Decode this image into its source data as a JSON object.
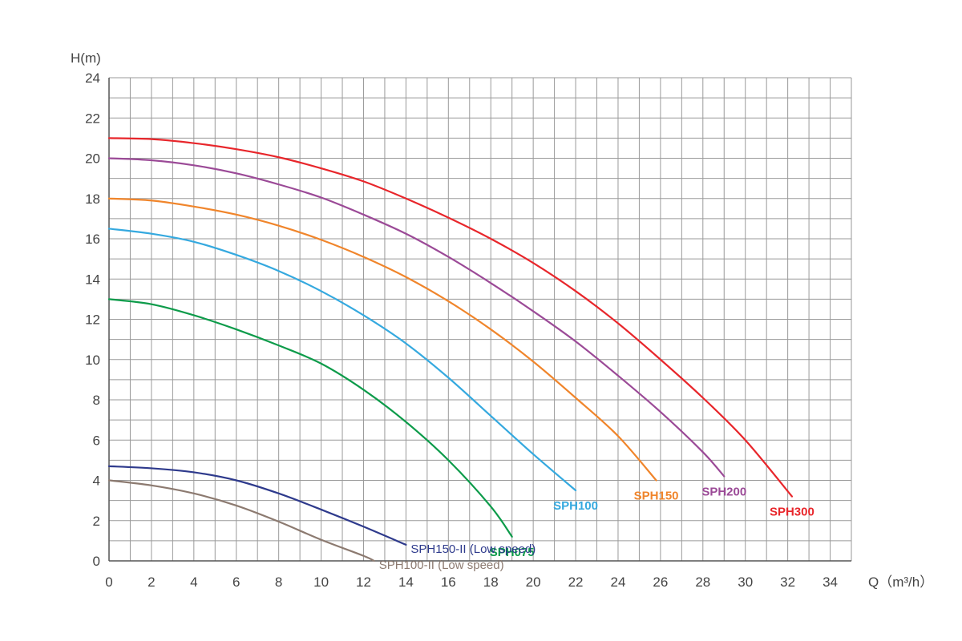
{
  "chart_data": {
    "type": "line",
    "title": "",
    "xlabel": "Q（m³/h）",
    "ylabel": "H(m)",
    "xlim": [
      0,
      35
    ],
    "ylim": [
      0,
      24
    ],
    "x_ticks": [
      0,
      2,
      4,
      6,
      8,
      10,
      12,
      14,
      16,
      18,
      20,
      22,
      24,
      26,
      28,
      30,
      32,
      34
    ],
    "y_ticks": [
      0,
      2,
      4,
      6,
      8,
      10,
      12,
      14,
      16,
      18,
      20,
      22,
      24
    ],
    "grid": true,
    "legend": "inline labels at curve ends",
    "series": [
      {
        "name": "SPH300",
        "color": "#e8262b",
        "bold": true,
        "x": [
          0,
          2,
          4,
          6,
          8,
          10,
          12,
          14,
          16,
          18,
          20,
          22,
          24,
          26,
          28,
          30,
          32.2
        ],
        "y": [
          21.0,
          20.95,
          20.75,
          20.45,
          20.05,
          19.5,
          18.85,
          18.0,
          17.05,
          16.0,
          14.8,
          13.4,
          11.8,
          10.0,
          8.1,
          6.0,
          3.2
        ]
      },
      {
        "name": "SPH200",
        "color": "#9b4a97",
        "bold": true,
        "x": [
          0,
          2,
          4,
          6,
          8,
          10,
          12,
          14,
          16,
          18,
          20,
          22,
          24,
          26,
          28,
          29
        ],
        "y": [
          20.0,
          19.9,
          19.65,
          19.25,
          18.7,
          18.05,
          17.2,
          16.25,
          15.1,
          13.8,
          12.4,
          10.9,
          9.2,
          7.4,
          5.4,
          4.2
        ]
      },
      {
        "name": "SPH150",
        "color": "#f0852b",
        "bold": true,
        "x": [
          0,
          2,
          4,
          6,
          8,
          10,
          12,
          14,
          16,
          18,
          20,
          22,
          24,
          25.8
        ],
        "y": [
          18.0,
          17.9,
          17.6,
          17.2,
          16.65,
          15.95,
          15.1,
          14.1,
          12.9,
          11.5,
          9.9,
          8.1,
          6.2,
          4.0
        ]
      },
      {
        "name": "SPH100",
        "color": "#35a9df",
        "bold": true,
        "x": [
          0,
          2,
          4,
          6,
          8,
          10,
          12,
          14,
          16,
          18,
          20,
          22
        ],
        "y": [
          16.5,
          16.25,
          15.85,
          15.2,
          14.4,
          13.4,
          12.2,
          10.8,
          9.1,
          7.2,
          5.3,
          3.5
        ]
      },
      {
        "name": "SPH075",
        "color": "#0d9b4a",
        "bold": true,
        "x": [
          0,
          2,
          4,
          6,
          8,
          10,
          12,
          14,
          16,
          18,
          19
        ],
        "y": [
          13.0,
          12.75,
          12.2,
          11.5,
          10.7,
          9.8,
          8.5,
          6.9,
          5.0,
          2.7,
          1.2
        ]
      },
      {
        "name": "SPH150-II (Low speed)",
        "color": "#2e3a8c",
        "bold": false,
        "x": [
          0,
          2,
          4,
          6,
          8,
          10,
          12,
          14
        ],
        "y": [
          4.7,
          4.6,
          4.4,
          4.0,
          3.35,
          2.55,
          1.7,
          0.8
        ]
      },
      {
        "name": "SPH100-II (Low speed)",
        "color": "#8c7a70",
        "bold": false,
        "x": [
          0,
          2,
          4,
          6,
          8,
          10,
          12,
          12.5
        ],
        "y": [
          4.0,
          3.75,
          3.35,
          2.75,
          1.95,
          1.05,
          0.25,
          0.0
        ]
      }
    ]
  }
}
